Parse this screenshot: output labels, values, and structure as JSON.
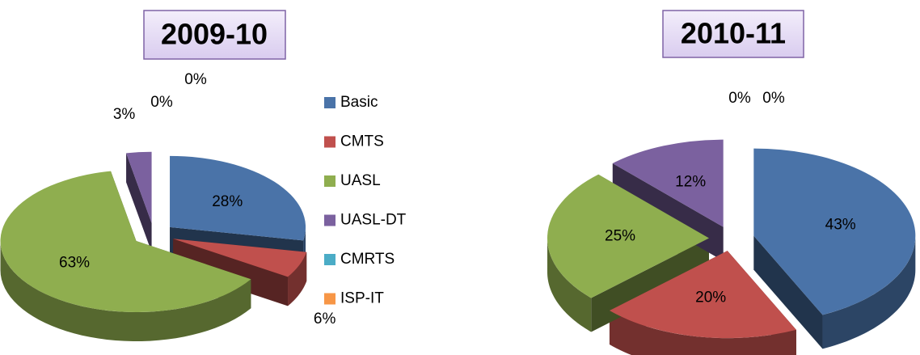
{
  "chart_data": [
    {
      "type": "pie",
      "title": "2009-10",
      "categories": [
        "Basic",
        "CMTS",
        "UASL",
        "UASL-DT",
        "CMRTS",
        "ISP-IT"
      ],
      "values": [
        28,
        6,
        63,
        3,
        0,
        0
      ],
      "value_labels": [
        "28%",
        "6%",
        "63%",
        "3%",
        "0%",
        "0%"
      ],
      "colors": [
        "#4a73a8",
        "#c0504d",
        "#8fae4f",
        "#7b619f",
        "#4bacc6",
        "#f79646"
      ],
      "legend": true
    },
    {
      "type": "pie",
      "title": "2010-11",
      "values": [
        43,
        20,
        25,
        12,
        0,
        0
      ],
      "value_labels": [
        "43%",
        "20%",
        "25%",
        "12%",
        "0%",
        "0%"
      ],
      "colors": [
        "#4a73a8",
        "#c0504d",
        "#8fae4f",
        "#7b619f",
        "#4bacc6",
        "#f79646"
      ],
      "legend": false
    }
  ]
}
